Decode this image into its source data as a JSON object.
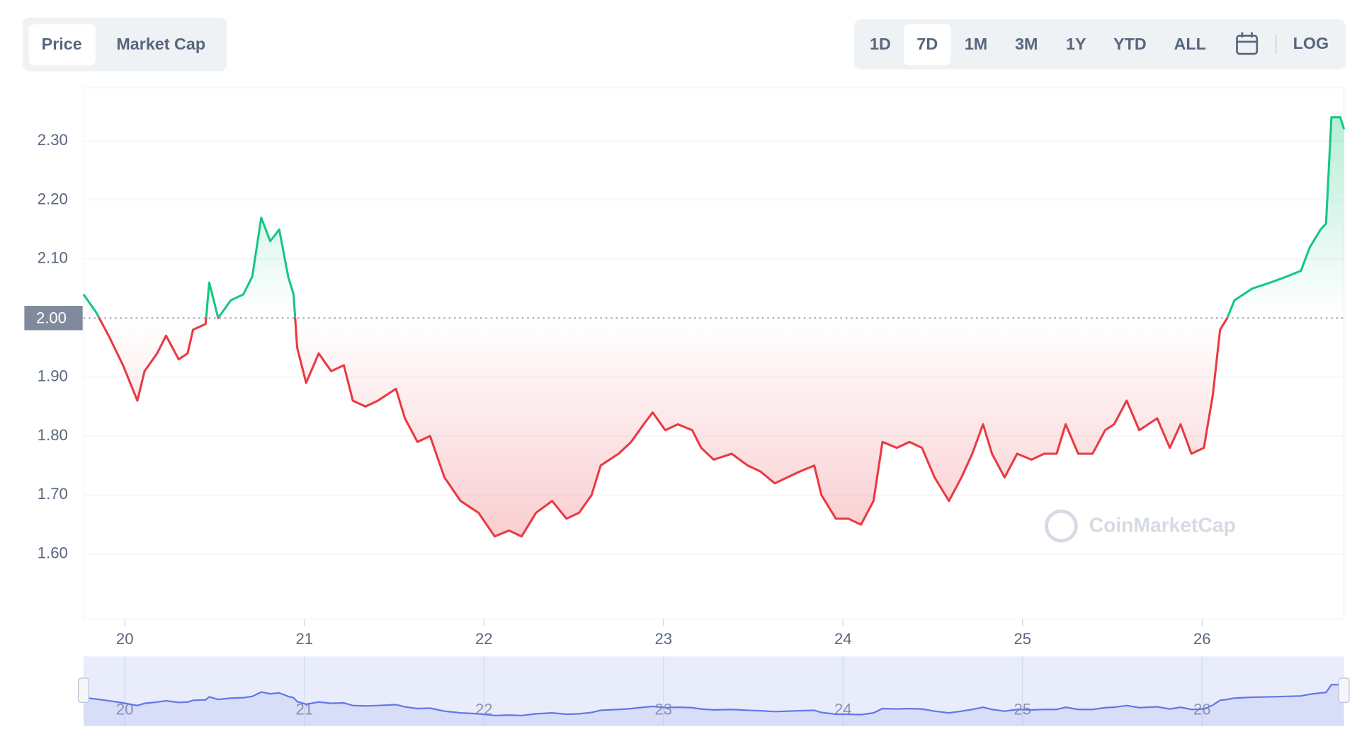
{
  "tabs": [
    "Price",
    "Market Cap"
  ],
  "selected_tab": "Price",
  "ranges": [
    "1D",
    "7D",
    "1M",
    "3M",
    "1Y",
    "YTD",
    "ALL"
  ],
  "selected_range": "7D",
  "log_button": "LOG",
  "watermark": "CoinMarketCap",
  "chart_data": {
    "type": "line",
    "x": [
      19.77,
      19.84,
      19.91,
      19.99,
      20.07,
      20.11,
      20.18,
      20.23,
      20.3,
      20.35,
      20.38,
      20.45,
      20.47,
      20.52,
      20.59,
      20.66,
      20.71,
      20.76,
      20.81,
      20.86,
      20.91,
      20.94,
      20.96,
      21.01,
      21.08,
      21.15,
      21.22,
      21.27,
      21.34,
      21.41,
      21.51,
      21.56,
      21.63,
      21.7,
      21.78,
      21.87,
      21.97,
      22.06,
      22.14,
      22.21,
      22.29,
      22.38,
      22.46,
      22.53,
      22.6,
      22.65,
      22.75,
      22.82,
      22.89,
      22.94,
      23.01,
      23.08,
      23.16,
      23.21,
      23.28,
      23.38,
      23.47,
      23.54,
      23.62,
      23.69,
      23.76,
      23.84,
      23.88,
      23.96,
      24.03,
      24.1,
      24.17,
      24.22,
      24.3,
      24.37,
      24.44,
      24.51,
      24.59,
      24.66,
      24.72,
      24.78,
      24.83,
      24.9,
      24.97,
      25.05,
      25.12,
      25.19,
      25.24,
      25.31,
      25.39,
      25.46,
      25.51,
      25.58,
      25.65,
      25.75,
      25.82,
      25.88,
      25.94,
      26.01,
      26.06,
      26.1,
      26.14,
      26.18,
      26.28,
      26.38,
      26.47,
      26.55,
      26.6,
      26.66,
      26.69,
      26.72,
      26.77,
      26.79
    ],
    "values": [
      2.04,
      2.01,
      1.97,
      1.92,
      1.86,
      1.91,
      1.94,
      1.97,
      1.93,
      1.94,
      1.98,
      1.99,
      2.06,
      2.0,
      2.03,
      2.04,
      2.07,
      2.17,
      2.13,
      2.15,
      2.07,
      2.04,
      1.95,
      1.89,
      1.94,
      1.91,
      1.92,
      1.86,
      1.85,
      1.86,
      1.88,
      1.83,
      1.79,
      1.8,
      1.73,
      1.69,
      1.67,
      1.63,
      1.64,
      1.63,
      1.67,
      1.69,
      1.66,
      1.67,
      1.7,
      1.75,
      1.77,
      1.79,
      1.82,
      1.84,
      1.81,
      1.82,
      1.81,
      1.78,
      1.76,
      1.77,
      1.75,
      1.74,
      1.72,
      1.73,
      1.74,
      1.75,
      1.7,
      1.66,
      1.66,
      1.65,
      1.69,
      1.79,
      1.78,
      1.79,
      1.78,
      1.73,
      1.69,
      1.73,
      1.77,
      1.82,
      1.77,
      1.73,
      1.77,
      1.76,
      1.77,
      1.77,
      1.82,
      1.77,
      1.77,
      1.81,
      1.82,
      1.86,
      1.81,
      1.83,
      1.78,
      1.82,
      1.77,
      1.78,
      1.87,
      1.98,
      2.0,
      2.03,
      2.05,
      2.06,
      2.07,
      2.08,
      2.12,
      2.15,
      2.16,
      2.34,
      2.34,
      2.32
    ],
    "reference": {
      "value": 2,
      "label": "2.00"
    },
    "up_color": "#16c784",
    "down_color": "#ea3943",
    "nav_color": "#6277e8",
    "xlim": [
      19.77,
      26.79
    ],
    "xticks": [
      20,
      21,
      22,
      23,
      24,
      25,
      26
    ],
    "ylim": [
      1.49,
      2.39
    ],
    "yticks": [
      {
        "value": 1.6,
        "label": "1.60"
      },
      {
        "value": 1.7,
        "label": "1.70"
      },
      {
        "value": 1.8,
        "label": "1.80"
      },
      {
        "value": 1.9,
        "label": "1.90"
      },
      {
        "value": 2.1,
        "label": "2.10"
      },
      {
        "value": 2.2,
        "label": "2.20"
      },
      {
        "value": 2.3,
        "label": "2.30"
      }
    ],
    "grid": true
  }
}
